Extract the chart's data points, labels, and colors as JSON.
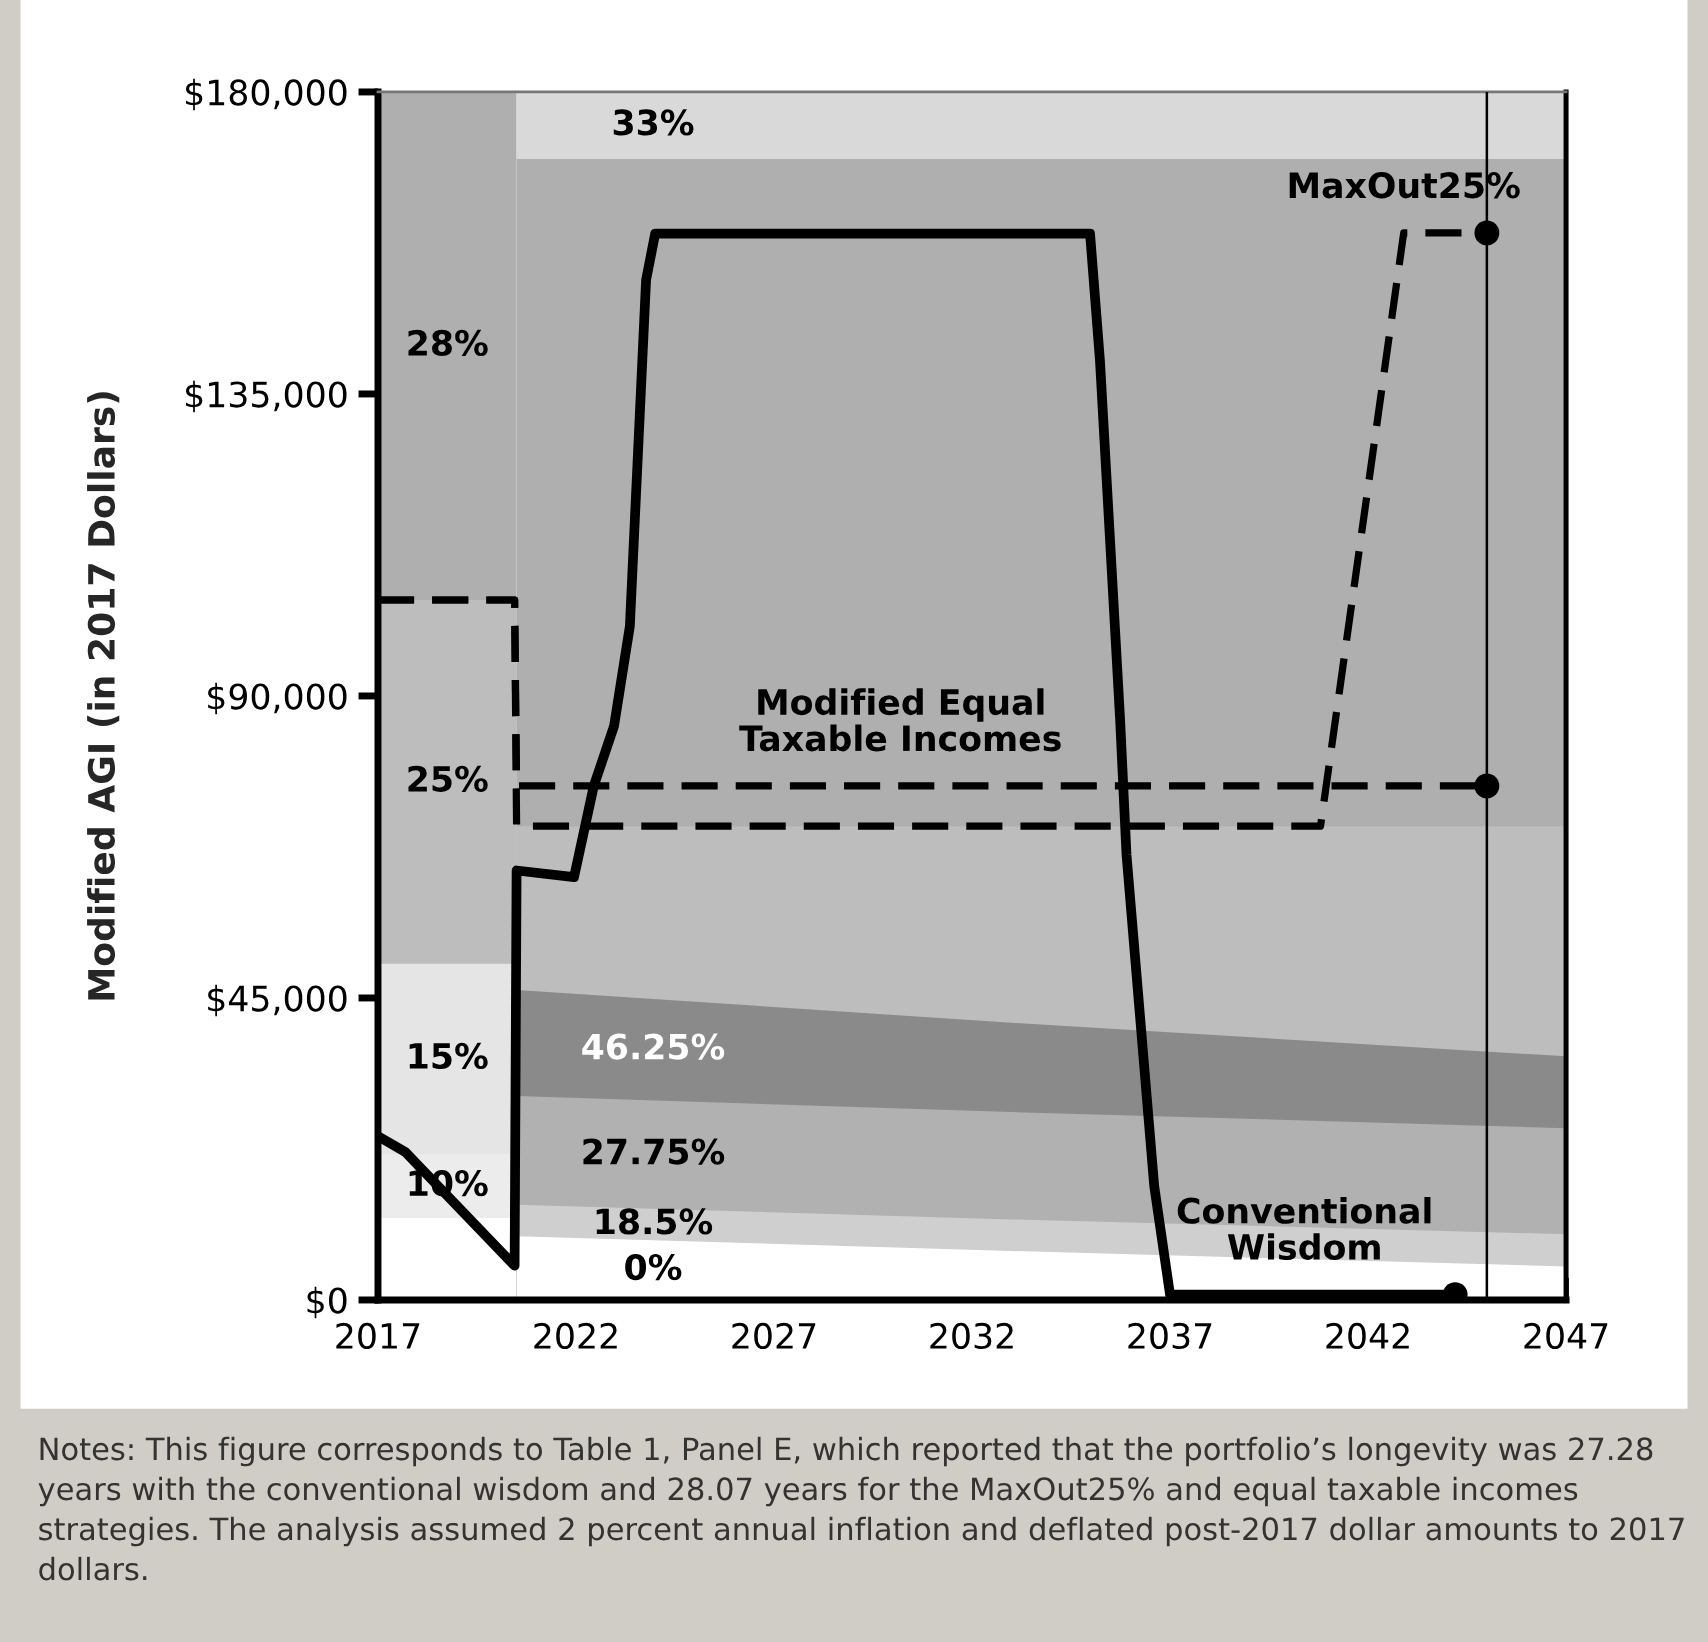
{
  "chart_data": {
    "type": "area",
    "ylabel": "Modified AGI (in 2017 Dollars)",
    "xlim": [
      2017,
      2047
    ],
    "xticks": [
      2017,
      2022,
      2027,
      2032,
      2037,
      2042,
      2047
    ],
    "ylim": [
      0,
      180000
    ],
    "yticks": [
      {
        "value": 0,
        "label": "$0"
      },
      {
        "value": 45000,
        "label": "$45,000"
      },
      {
        "value": 90000,
        "label": "$90,000"
      },
      {
        "value": 135000,
        "label": "$135,000"
      },
      {
        "value": 180000,
        "label": "$180,000"
      }
    ],
    "grid": false,
    "legend": false,
    "series": [
      {
        "name": "28%",
        "color": "#afafaf",
        "x": [
          2017,
          2020.5
        ],
        "values": [
          180000,
          180000
        ]
      },
      {
        "name": "25%",
        "color": "#bdbdbd",
        "x": [
          2017,
          2020.5
        ],
        "values": [
          104300,
          104300
        ]
      },
      {
        "name": "15%",
        "color": "#e5e5e5",
        "x": [
          2017,
          2020.5
        ],
        "values": [
          50100,
          50100
        ]
      },
      {
        "name": "10%",
        "color": "#ececec",
        "x": [
          2017,
          2020.5
        ],
        "values": [
          21700,
          21700
        ]
      },
      {
        "color": "#ffffff",
        "x": [
          2017,
          2020.5
        ],
        "values": [
          12200,
          12200
        ]
      },
      {
        "name": "33%",
        "color": "#d9d9d9",
        "x": [
          2020.5,
          2033,
          2047
        ],
        "values": [
          180000,
          180000,
          180000
        ]
      },
      {
        "color": "#afafaf",
        "x": [
          2020.5,
          2033,
          2047
        ],
        "values": [
          170000,
          170000,
          170000
        ]
      },
      {
        "color": "#bdbdbd",
        "x": [
          2020.5,
          2033,
          2047
        ],
        "values": [
          70600,
          70600,
          70600
        ]
      },
      {
        "name": "46.25%",
        "color": "#8a8a8a",
        "x": [
          2020.5,
          2033,
          2047
        ],
        "values": [
          46200,
          41300,
          36300
        ]
      },
      {
        "name": "27.75%",
        "color": "#b1b1b1",
        "x": [
          2020.5,
          2033,
          2047
        ],
        "values": [
          30400,
          28000,
          25600
        ]
      },
      {
        "name": "18.5%",
        "color": "#cfcfcf",
        "x": [
          2020.5,
          2033,
          2047
        ],
        "values": [
          14200,
          12000,
          9800
        ]
      },
      {
        "name": "0%",
        "color": "#ffffff",
        "x": [
          2020.5,
          2033,
          2047
        ],
        "values": [
          9500,
          7300,
          5000
        ]
      },
      {
        "type": "line",
        "color": "#000000",
        "line_style": "solid",
        "x": [
          2017,
          2017.7,
          2020.45,
          2020.5,
          2021.95,
          2022.45,
          2022.96,
          2023.36,
          2023.77,
          2024.0,
          2034.98,
          2035.23,
          2035.74,
          2035.9,
          2036.6,
          2037.0,
          2044.2
        ],
        "values": [
          24400,
          22000,
          5100,
          64000,
          63000,
          76600,
          85500,
          100400,
          152000,
          158900,
          158900,
          140000,
          86400,
          66400,
          17000,
          800,
          800
        ]
      },
      {
        "type": "line",
        "color": "#000000",
        "line_style": "dashed",
        "x": [
          2017,
          2020.45,
          2020.5,
          2045
        ],
        "values": [
          104300,
          104300,
          76600,
          76600
        ]
      },
      {
        "type": "line",
        "color": "#000000",
        "line_style": "dashed",
        "x": [
          2017,
          2020.45,
          2020.5,
          2040.8,
          2042.9,
          2045
        ],
        "values": [
          104300,
          104300,
          70600,
          70600,
          159000,
          159000
        ]
      },
      {
        "type": "scatter",
        "color": "#000000",
        "marker": "circle",
        "x": [
          2045,
          2045,
          2044.2
        ],
        "values": [
          159000,
          76600,
          800
        ]
      }
    ],
    "ref_lines": [
      {
        "axis": "x",
        "value": 2045,
        "color": "#000000"
      }
    ],
    "annotations": [
      {
        "text": "MaxOut25%",
        "x": 2042.9,
        "y": 159000
      },
      {
        "text": "Modified Equal\nTaxable Incomes",
        "x": 2030.2,
        "y": 76600
      },
      {
        "text": "Conventional\nWisdom",
        "x": 2040.4,
        "y": 800
      },
      "Notes: This figure corresponds to Table 1, Panel E, which reported that the portfolio’s longevity was 27.28 years with the conventional wisdom and 28.07 years for the MaxOut25% and equal taxable incomes strategies. The analysis assumed 2 percent annual inflation and deflated post-2017 dollar amounts to 2017 dollars."
    ]
  }
}
